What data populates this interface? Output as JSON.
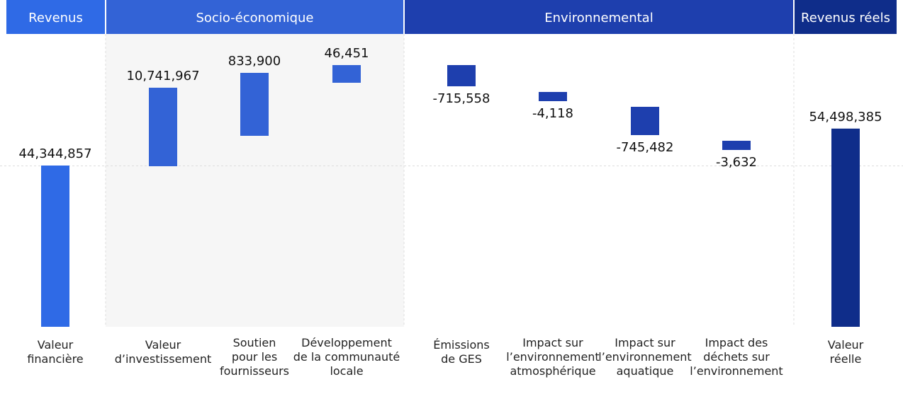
{
  "chart_data": {
    "type": "bar",
    "subtype": "waterfall",
    "grid": "dashed baseline",
    "groups": [
      {
        "label": "Revenus",
        "color": "#2f6ae6",
        "categories": [
          "Valeur financière"
        ]
      },
      {
        "label": "Socio-économique",
        "color": "#3363d6",
        "categories": [
          "Valeur d'investissement",
          "Soutien pour les fournisseurs",
          "Développement de la communauté locale"
        ]
      },
      {
        "label": "Environnemental",
        "color": "#1e3fae",
        "categories": [
          "Émissions de GES",
          "Impact sur l'environnement atmosphérique",
          "Impact sur l'environnement aquatique",
          "Impact des déchets sur l'environnement"
        ]
      },
      {
        "label": "Revenus réels",
        "color": "#0f2d8a",
        "categories": [
          "Valeur réelle"
        ]
      }
    ],
    "categories": [
      [
        "Valeur",
        "financière"
      ],
      [
        "Valeur",
        "d’investissement"
      ],
      [
        "Soutien",
        "pour les",
        "fournisseurs"
      ],
      [
        "Développement",
        "de la communauté",
        "locale"
      ],
      [
        "Émissions",
        "de GES"
      ],
      [
        "Impact sur",
        "l’environnement",
        "atmosphérique"
      ],
      [
        "Impact sur",
        "l’environnement",
        "aquatique"
      ],
      [
        "Impact des",
        "déchets sur",
        "l’environnement"
      ],
      [
        "Valeur",
        "réelle"
      ]
    ],
    "values": [
      44344857,
      10741967,
      833900,
      46451,
      -715558,
      -4118,
      -745482,
      -3632,
      54498385
    ],
    "value_labels": [
      "44,344,857",
      "10,741,967",
      "833,900",
      "46,451",
      "-715,558",
      "-4,118",
      "-745,482",
      "-3,632",
      "54,498,385"
    ],
    "bar_colors": [
      "#2f6ae6",
      "#3363d6",
      "#3363d6",
      "#3363d6",
      "#1e3fae",
      "#1e3fae",
      "#1e3fae",
      "#1e3fae",
      "#0f2d8a"
    ],
    "header_colors": [
      "#2f6ae6",
      "#3363d6",
      "#1e3fae",
      "#0f2d8a"
    ],
    "shaded_group_background": "#f6f6f6"
  }
}
